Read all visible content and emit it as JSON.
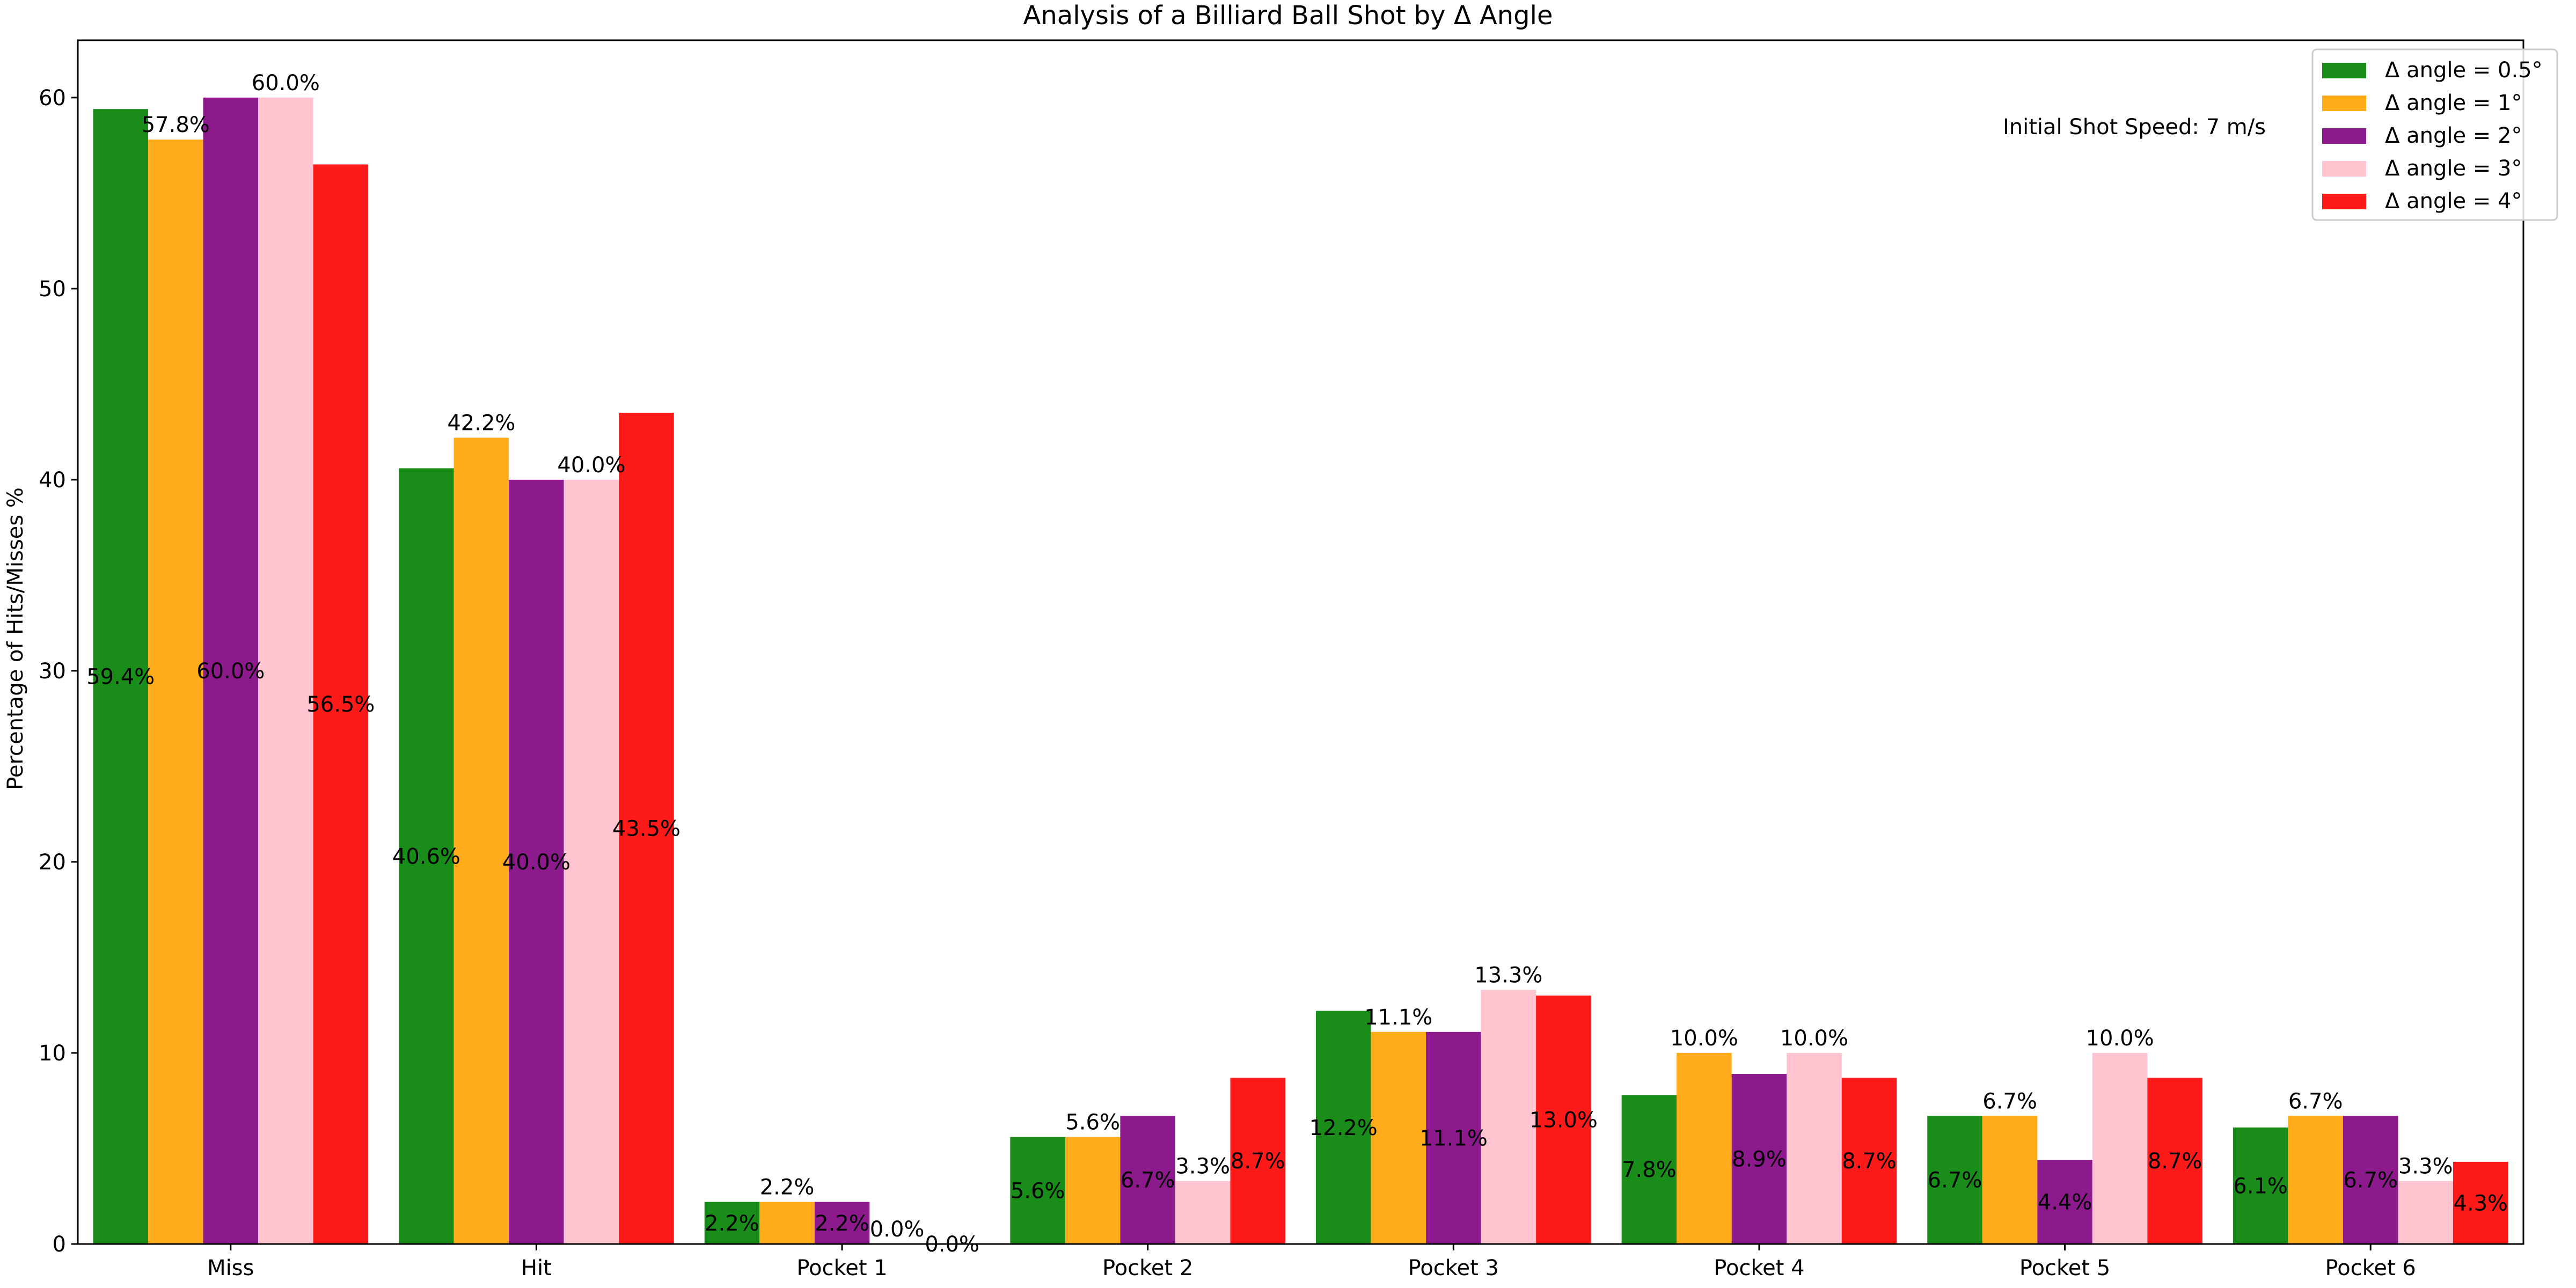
{
  "chart_data": {
    "type": "bar",
    "title": "Analysis of a Billiard Ball Shot by Δ Angle",
    "xlabel": "",
    "ylabel": "Percentage of Hits/Misses %",
    "ylim": [
      0,
      63
    ],
    "yticks": [
      0,
      10,
      20,
      30,
      40,
      50,
      60
    ],
    "grid": false,
    "legend_position": "top-right",
    "annotation": "Initial Shot Speed: 7 m/s",
    "categories": [
      "Miss",
      "Hit",
      "Pocket 1",
      "Pocket 2",
      "Pocket 3",
      "Pocket 4",
      "Pocket 5",
      "Pocket 6"
    ],
    "series": [
      {
        "name": "Δ angle = 0.5°",
        "color": "#1a8c1a",
        "values": [
          59.4,
          40.6,
          2.2,
          5.6,
          12.2,
          7.8,
          6.7,
          6.1
        ],
        "labels": [
          "59.4%",
          "40.6%",
          "2.2%",
          "5.6%",
          "12.2%",
          "7.8%",
          "6.7%",
          "6.1%"
        ]
      },
      {
        "name": "Δ angle = 1°",
        "color": "#ffab1a",
        "values": [
          57.8,
          42.2,
          2.2,
          5.6,
          11.1,
          10.0,
          6.7,
          6.7
        ],
        "labels": [
          "57.8%",
          "42.2%",
          "2.2%",
          "5.6%",
          "11.1%",
          "10.0%",
          "6.7%",
          "6.7%"
        ]
      },
      {
        "name": "Δ angle = 2°",
        "color": "#8c1a8c",
        "values": [
          60.0,
          40.0,
          2.2,
          6.7,
          11.1,
          8.9,
          4.4,
          6.7
        ],
        "labels": [
          "60.0%",
          "40.0%",
          "2.2%",
          "6.7%",
          "11.1%",
          "8.9%",
          "4.4%",
          "6.7%"
        ]
      },
      {
        "name": "Δ angle = 3°",
        "color": "#ffc4cf",
        "values": [
          60.0,
          40.0,
          0.0,
          3.3,
          13.3,
          10.0,
          10.0,
          3.3
        ],
        "labels": [
          "60.0%",
          "40.0%",
          "0.0%",
          "3.3%",
          "13.3%",
          "10.0%",
          "10.0%",
          "3.3%"
        ]
      },
      {
        "name": "Δ angle = 4°",
        "color": "#ff1a1a",
        "values": [
          56.5,
          43.5,
          0.0,
          8.7,
          13.0,
          8.7,
          8.7,
          4.3
        ],
        "labels": [
          "56.5%",
          "43.5%",
          "0.0%",
          "8.7%",
          "13.0%",
          "8.7%",
          "8.7%",
          "4.3%"
        ]
      }
    ]
  }
}
